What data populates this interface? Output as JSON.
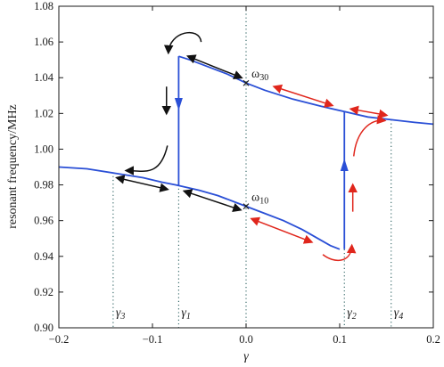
{
  "chart_data": {
    "type": "line",
    "title": "",
    "xlabel": "γ",
    "ylabel": "resonant frequency/MHz",
    "xlim": [
      -0.2,
      0.2
    ],
    "ylim": [
      0.9,
      1.08
    ],
    "x_ticks": [
      -0.2,
      -0.1,
      0.0,
      0.1,
      0.2
    ],
    "x_tick_labels": [
      "−0.2",
      "−0.1",
      "0.0",
      "0.1",
      "0.2"
    ],
    "y_ticks": [
      0.9,
      0.92,
      0.94,
      0.96,
      0.98,
      1.0,
      1.02,
      1.04,
      1.06,
      1.08
    ],
    "y_tick_labels": [
      "0.90",
      "0.92",
      "0.94",
      "0.96",
      "0.98",
      "1.00",
      "1.02",
      "1.04",
      "1.06",
      "1.08"
    ],
    "grid": false,
    "colors": {
      "curve": "#2a4fd6",
      "arrow_black": "#111111",
      "arrow_red": "#e0261c",
      "vline": "#2a6060"
    },
    "series": [
      {
        "x": [
          -0.2,
          -0.17,
          -0.14,
          -0.11,
          -0.09,
          -0.075,
          -0.05,
          -0.03,
          -0.01,
          0.0,
          0.02,
          0.04,
          0.06,
          0.08,
          0.09,
          0.1
        ],
        "values": [
          0.99,
          0.989,
          0.9865,
          0.984,
          0.9815,
          0.98,
          0.977,
          0.974,
          0.97,
          0.968,
          0.964,
          0.96,
          0.955,
          0.949,
          0.946,
          0.944
        ]
      },
      {
        "x": [
          -0.072,
          -0.06,
          -0.04,
          -0.02,
          0.0,
          0.02,
          0.05,
          0.08,
          0.105,
          0.13,
          0.155,
          0.18,
          0.2
        ],
        "values": [
          1.052,
          1.05,
          1.046,
          1.042,
          1.037,
          1.033,
          1.028,
          1.024,
          1.021,
          1.018,
          1.0165,
          1.015,
          1.014
        ]
      }
    ],
    "jumps": [
      {
        "x": -0.072,
        "from": 1.052,
        "to": 0.98,
        "direction": "down"
      },
      {
        "x": 0.105,
        "from": 0.944,
        "to": 1.021,
        "direction": "up"
      }
    ],
    "vertical_lines": [
      {
        "x": -0.142,
        "label": "γ",
        "sub": "3"
      },
      {
        "x": -0.072,
        "label": "γ",
        "sub": "1"
      },
      {
        "x": 0.0,
        "label": "",
        "sub": ""
      },
      {
        "x": 0.105,
        "label": "γ",
        "sub": "2"
      },
      {
        "x": 0.155,
        "label": "γ",
        "sub": "4"
      }
    ],
    "points": [
      {
        "x": 0.0,
        "y": 1.037,
        "label": "ω",
        "sub": "30"
      },
      {
        "x": 0.0,
        "y": 0.968,
        "label": "ω",
        "sub": "10"
      }
    ]
  }
}
